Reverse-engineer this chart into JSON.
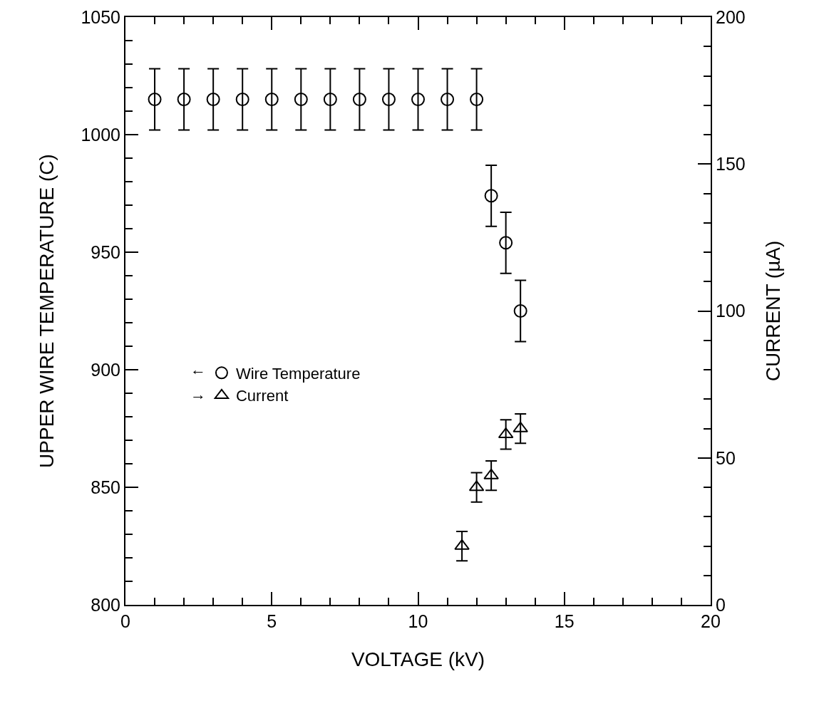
{
  "chart_data": {
    "type": "scatter",
    "xlabel": "VOLTAGE (kV)",
    "ylabel": "UPPER WIRE TEMPERATURE (C)",
    "y2label": "CURRENT (µA)",
    "series": [
      {
        "name": "Wire Temperature",
        "color": "#000000",
        "marker": "circle",
        "x": [
          1,
          2,
          3,
          4,
          5,
          6,
          7,
          8,
          9,
          10,
          11,
          12,
          12.5,
          13,
          13.5
        ],
        "values": [
          1015,
          1015,
          1015,
          1015,
          1015,
          1015,
          1015,
          1015,
          1015,
          1015,
          1015,
          1015,
          974,
          954,
          925
        ],
        "errors": [
          13,
          13,
          13,
          13,
          13,
          13,
          13,
          13,
          13,
          13,
          13,
          13,
          13,
          13,
          13
        ]
      },
      {
        "name": "Current",
        "color": "#000000",
        "marker": "triangle",
        "axis": "y2",
        "x": [
          11.5,
          12,
          12.5,
          13,
          13.5
        ],
        "values": [
          20,
          40,
          44,
          58,
          60
        ],
        "errors": [
          5,
          5,
          5,
          5,
          5
        ]
      }
    ],
    "annotations": [
      "←",
      "→"
    ],
    "legend": "left",
    "grid": false,
    "xlim": [
      0,
      20
    ],
    "xticks": [
      0,
      {
        "value": 1,
        "label": null
      },
      {
        "value": 2,
        "label": null
      },
      {
        "value": 3,
        "label": null
      },
      {
        "value": 4,
        "label": null
      },
      5,
      {
        "value": 6,
        "label": null
      },
      {
        "value": 7,
        "label": null
      },
      {
        "value": 8,
        "label": null
      },
      {
        "value": 9,
        "label": null
      },
      10,
      {
        "value": 11,
        "label": null
      },
      {
        "value": 12,
        "label": null
      },
      {
        "value": 13,
        "label": null
      },
      {
        "value": 14,
        "label": null
      },
      15,
      {
        "value": 16,
        "label": null
      },
      {
        "value": 17,
        "label": null
      },
      {
        "value": 18,
        "label": null
      },
      {
        "value": 19,
        "label": null
      },
      20
    ],
    "ylim": [
      800,
      1050
    ],
    "yticks": [
      800,
      {
        "value": 810,
        "label": null
      },
      {
        "value": 820,
        "label": null
      },
      {
        "value": 830,
        "label": null
      },
      {
        "value": 840,
        "label": null
      },
      850,
      {
        "value": 860,
        "label": null
      },
      {
        "value": 870,
        "label": null
      },
      {
        "value": 880,
        "label": null
      },
      {
        "value": 890,
        "label": null
      },
      900,
      {
        "value": 910,
        "label": null
      },
      {
        "value": 920,
        "label": null
      },
      {
        "value": 930,
        "label": null
      },
      {
        "value": 940,
        "label": null
      },
      950,
      {
        "value": 960,
        "label": null
      },
      {
        "value": 970,
        "label": null
      },
      {
        "value": 980,
        "label": null
      },
      {
        "value": 990,
        "label": null
      },
      1000,
      {
        "value": 1010,
        "label": null
      },
      {
        "value": 1020,
        "label": null
      },
      {
        "value": 1030,
        "label": null
      },
      {
        "value": 1040,
        "label": null
      },
      1050
    ],
    "y2lim": [
      0,
      200
    ],
    "y2ticks": [
      0,
      {
        "value": 10,
        "label": null
      },
      {
        "value": 20,
        "label": null
      },
      {
        "value": 30,
        "label": null
      },
      {
        "value": 40,
        "label": null
      },
      50,
      {
        "value": 60,
        "label": null
      },
      {
        "value": 70,
        "label": null
      },
      {
        "value": 80,
        "label": null
      },
      {
        "value": 90,
        "label": null
      },
      100,
      {
        "value": 110,
        "label": null
      },
      {
        "value": 120,
        "label": null
      },
      {
        "value": 130,
        "label": null
      },
      {
        "value": 140,
        "label": null
      },
      150,
      {
        "value": 160,
        "label": null
      },
      {
        "value": 170,
        "label": null
      },
      {
        "value": 180,
        "label": null
      },
      {
        "value": 190,
        "label": null
      },
      200
    ]
  }
}
